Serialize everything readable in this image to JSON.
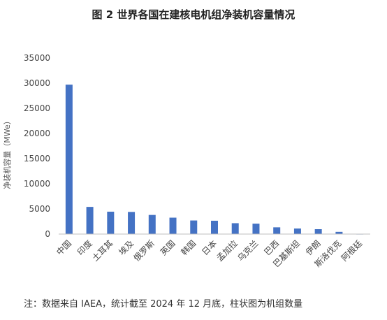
{
  "chart_data": {
    "type": "bar",
    "title": "图 2 世界各国在建核电机组净装机容量情况",
    "xlabel": "",
    "ylabel": "净装机容量（MWe）",
    "ylim": [
      0,
      35000
    ],
    "yticks": [
      0,
      5000,
      10000,
      15000,
      20000,
      25000,
      30000,
      35000
    ],
    "grid": false,
    "legend": "none",
    "bar_color": "#4472c4",
    "categories": [
      "中国",
      "印度",
      "土耳其",
      "埃及",
      "俄罗斯",
      "英国",
      "韩国",
      "日本",
      "孟加拉",
      "乌克兰",
      "巴西",
      "巴基斯坦",
      "伊朗",
      "斯洛伐克",
      "阿根廷"
    ],
    "values": [
      29700,
      5400,
      4450,
      4400,
      3800,
      3260,
      2700,
      2650,
      2160,
      2070,
      1340,
      1100,
      970,
      440,
      30
    ]
  },
  "note": "注：数据来自 IAEA，统计截至 2024 年 12 月底，柱状图为机组数量"
}
